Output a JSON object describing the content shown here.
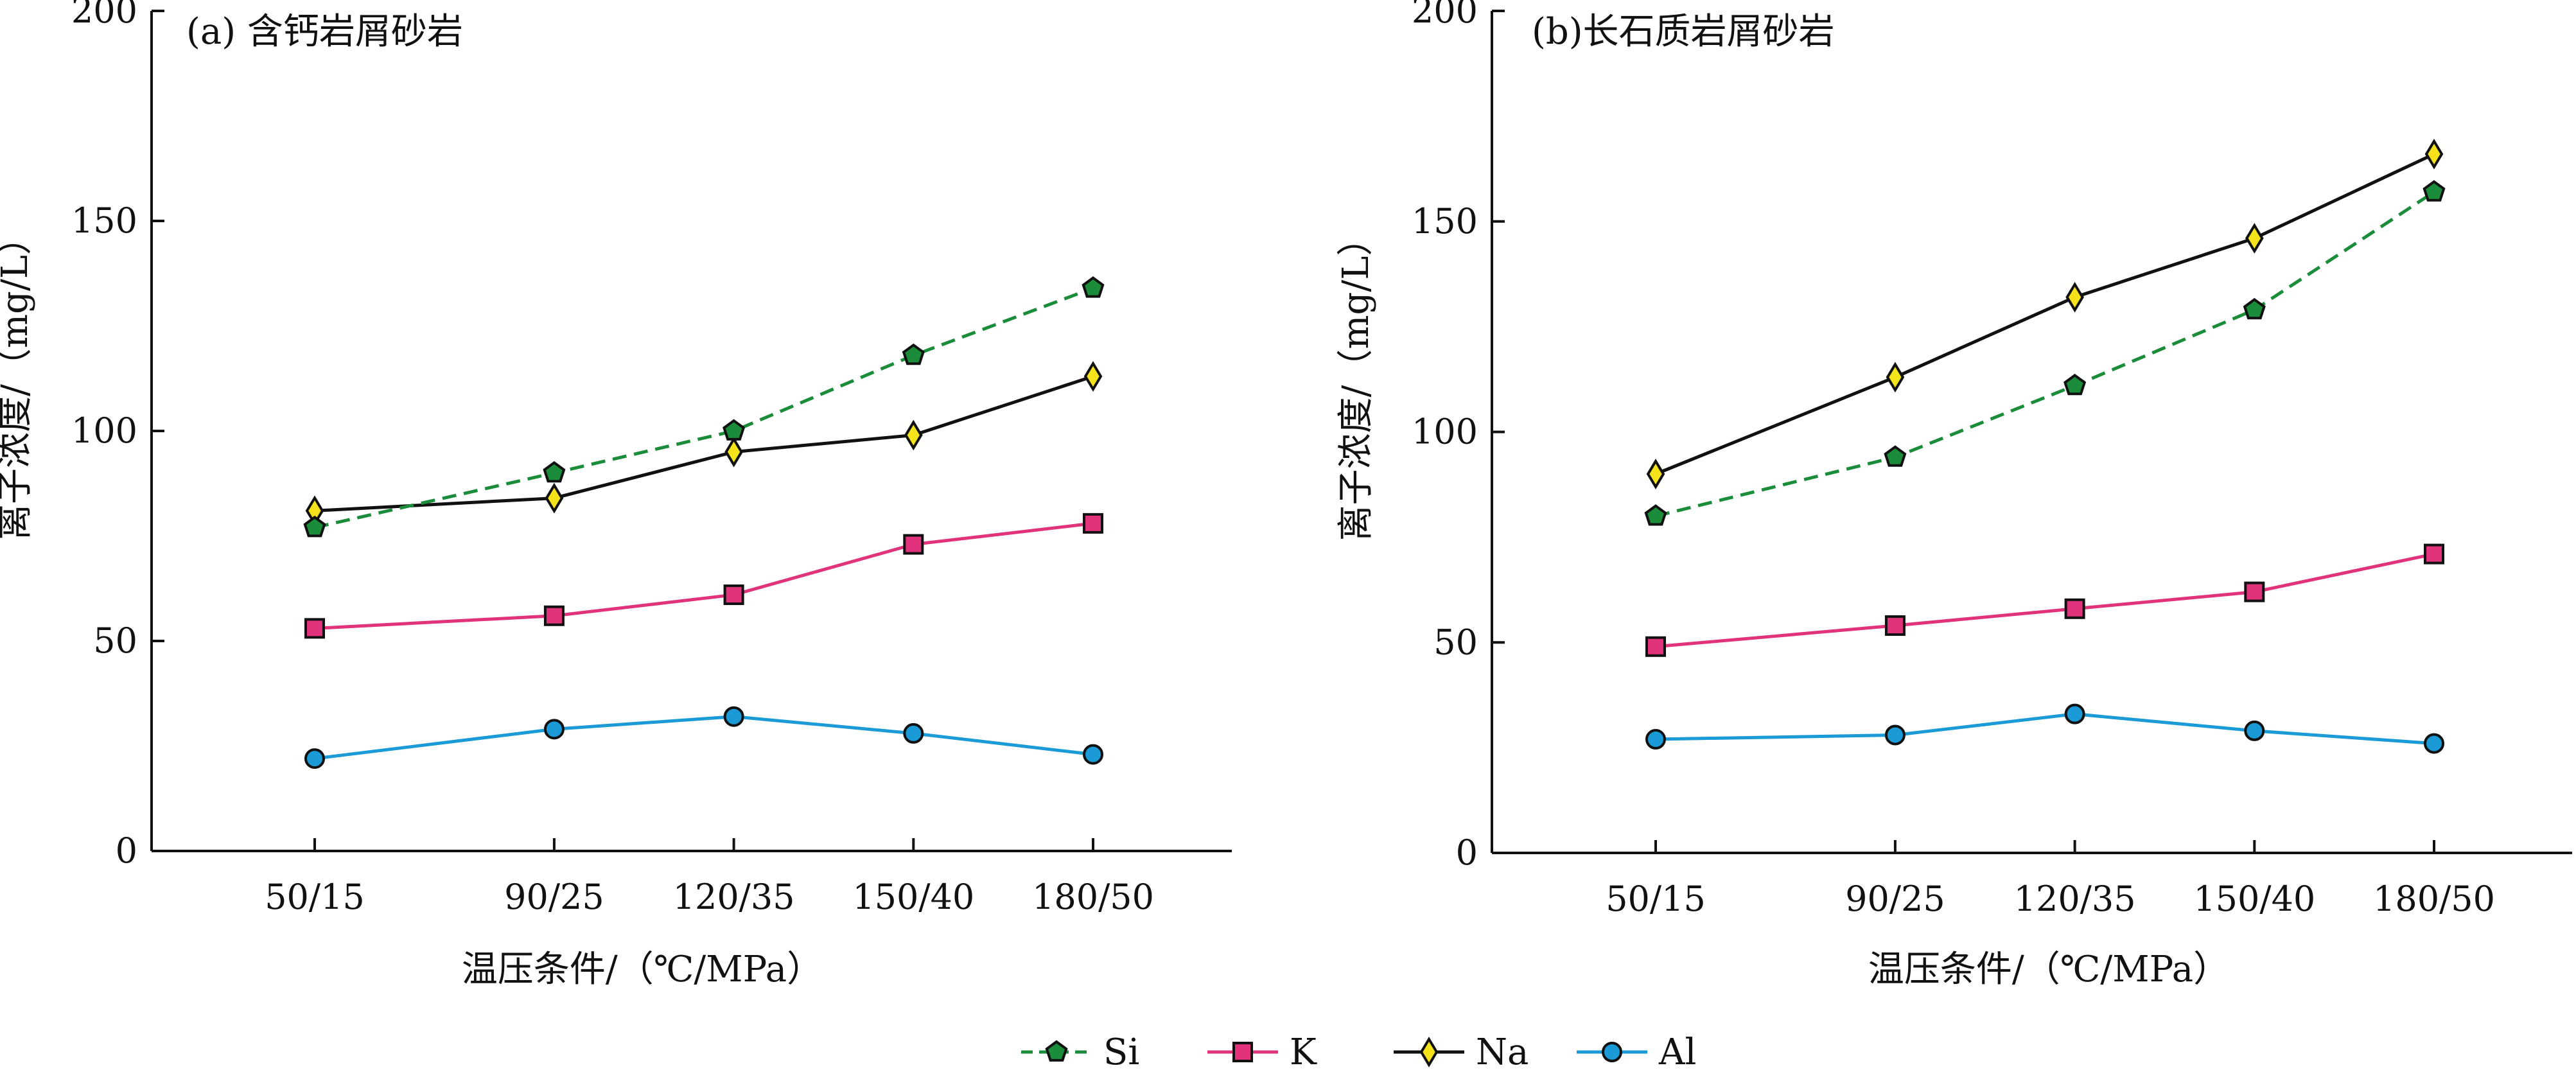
{
  "chart_data": [
    {
      "type": "line",
      "title": "(a) 含钙岩屑砂岩",
      "xlabel": "温压条件/（℃/MPa）",
      "ylabel": "离子浓度/（mg/L）",
      "categories": [
        "50/15",
        "90/25",
        "120/35",
        "150/40",
        "180/50"
      ],
      "x": [
        50,
        90,
        120,
        150,
        180
      ],
      "xlim": [
        30,
        200
      ],
      "ylim": [
        0,
        200
      ],
      "yticks": [
        0,
        50,
        100,
        150,
        200
      ],
      "grid": false,
      "series": [
        {
          "name": "Si",
          "values": [
            77,
            90,
            100,
            118,
            134
          ]
        },
        {
          "name": "K",
          "values": [
            53,
            56,
            61,
            73,
            78
          ]
        },
        {
          "name": "Na",
          "values": [
            81,
            84,
            95,
            99,
            113
          ]
        },
        {
          "name": "Al",
          "values": [
            22,
            29,
            32,
            28,
            23
          ]
        }
      ]
    },
    {
      "type": "line",
      "title": "(b)长石质岩屑砂岩",
      "xlabel": "温压条件/（℃/MPa）",
      "ylabel": "离子浓度/（mg/L）",
      "categories": [
        "50/15",
        "90/25",
        "120/35",
        "150/40",
        "180/50"
      ],
      "x": [
        50,
        90,
        120,
        150,
        180
      ],
      "xlim": [
        30,
        200
      ],
      "ylim": [
        0,
        200
      ],
      "yticks": [
        0,
        50,
        100,
        150,
        200
      ],
      "grid": false,
      "series": [
        {
          "name": "Si",
          "values": [
            80,
            94,
            111,
            129,
            157
          ]
        },
        {
          "name": "K",
          "values": [
            49,
            54,
            58,
            62,
            71
          ]
        },
        {
          "name": "Na",
          "values": [
            90,
            113,
            132,
            146,
            166
          ]
        },
        {
          "name": "Al",
          "values": [
            27,
            28,
            33,
            29,
            26
          ]
        }
      ]
    }
  ],
  "legend": [
    {
      "name": "Si",
      "marker": "pentagon",
      "line_color": "#1a8c3a",
      "marker_fill": "#1a8c3a",
      "dashed": true
    },
    {
      "name": "K",
      "marker": "square",
      "line_color": "#e0337b",
      "marker_fill": "#e0337b",
      "dashed": false
    },
    {
      "name": "Na",
      "marker": "diamond",
      "line_color": "#111111",
      "marker_fill": "#f4e21a",
      "dashed": false
    },
    {
      "name": "Al",
      "marker": "circle",
      "line_color": "#1a9ad6",
      "marker_fill": "#1a9ad6",
      "dashed": false
    }
  ]
}
